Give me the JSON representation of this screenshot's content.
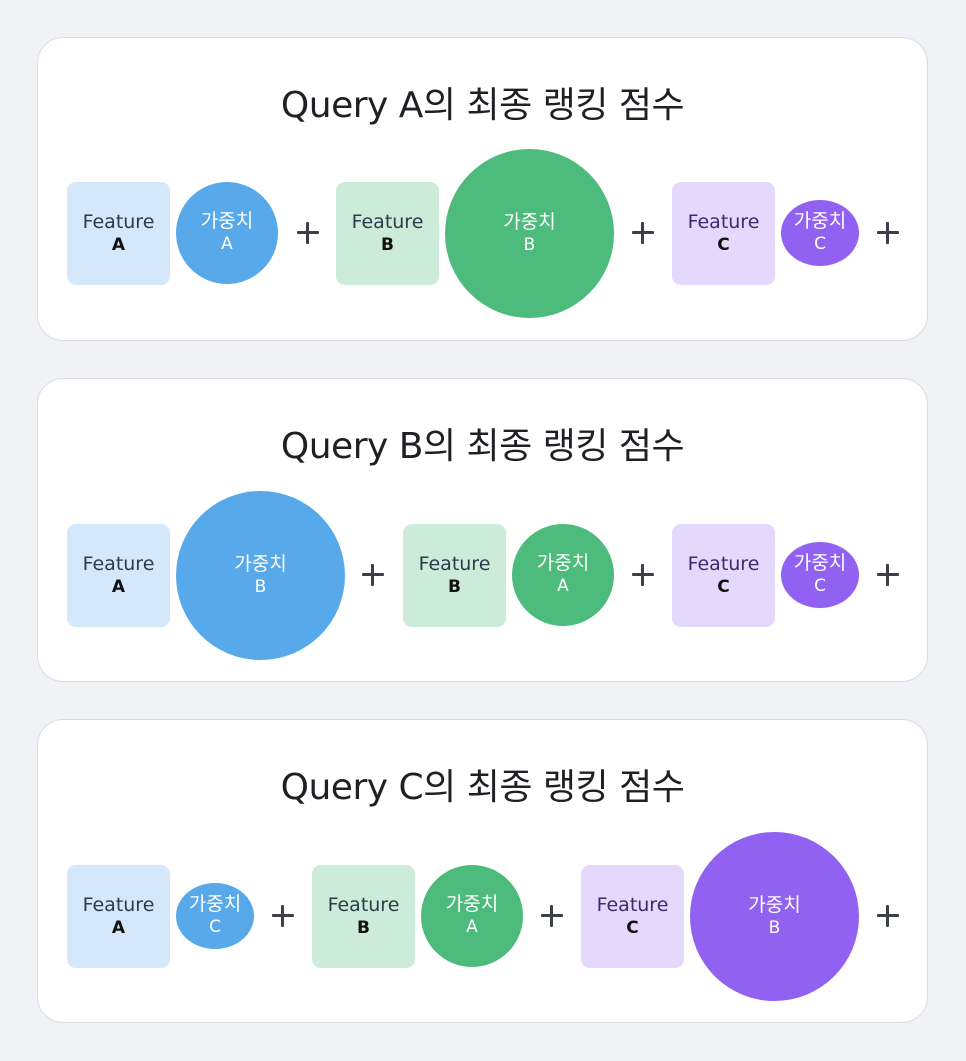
{
  "colors": {
    "page_bg": "#f1f2f6",
    "card_bg": "#ffffff",
    "blue_box": "#d4e7fb",
    "blue_circle": "#58a9ea",
    "green_box": "#cdebd9",
    "green_circle": "#4cbb7b",
    "purple_box": "#e4d8fd",
    "purple_circle": "#9162f2",
    "feature_text": "#2c3a4a",
    "feature_text_purple": "#3c2a6e"
  },
  "feature_label": "Feature",
  "weight_label": "가중치",
  "plus_symbol": "+",
  "queries": [
    {
      "title": "Query A의 최종 랭킹 점수",
      "terms": [
        {
          "feature": "A",
          "feature_color": "blue",
          "weight": "A",
          "weight_size": "small"
        },
        {
          "feature": "B",
          "feature_color": "green",
          "weight": "B",
          "weight_size": "large"
        },
        {
          "feature": "C",
          "feature_color": "purple",
          "weight": "C",
          "weight_size": "tiny"
        }
      ]
    },
    {
      "title": "Query B의 최종 랭킹 점수",
      "terms": [
        {
          "feature": "A",
          "feature_color": "blue",
          "weight": "B",
          "weight_size": "large"
        },
        {
          "feature": "B",
          "feature_color": "green",
          "weight": "A",
          "weight_size": "small"
        },
        {
          "feature": "C",
          "feature_color": "purple",
          "weight": "C",
          "weight_size": "tiny"
        }
      ]
    },
    {
      "title": "Query C의 최종 랭킹 점수",
      "terms": [
        {
          "feature": "A",
          "feature_color": "blue",
          "weight": "C",
          "weight_size": "tiny"
        },
        {
          "feature": "B",
          "feature_color": "green",
          "weight": "A",
          "weight_size": "small"
        },
        {
          "feature": "C",
          "feature_color": "purple",
          "weight": "B",
          "weight_size": "large"
        }
      ]
    }
  ]
}
